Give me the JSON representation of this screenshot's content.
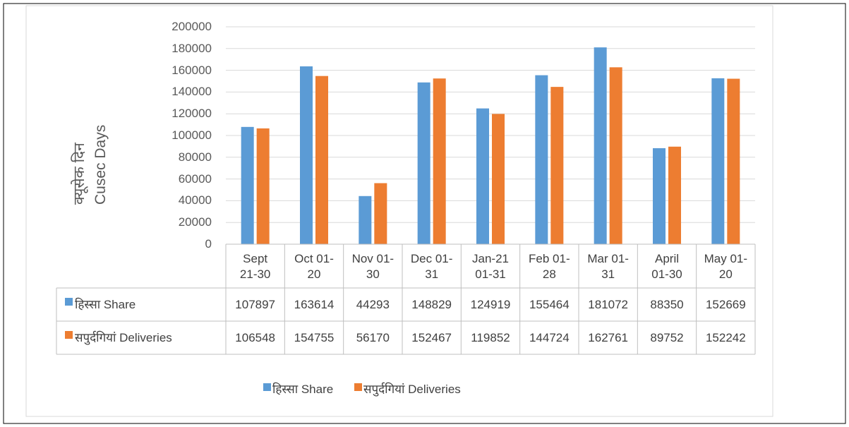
{
  "chart_data": {
    "type": "bar",
    "y_label": [
      "क्यूसेक दिन",
      "Cusec Days"
    ],
    "categories": [
      "Sept 21-30",
      "Oct 01-20",
      "Nov 01-30",
      "Dec 01-31",
      "Jan-21 01-31",
      "Feb 01-28",
      "Mar 01-31",
      "April 01-30",
      "May 01-20"
    ],
    "series": [
      {
        "name": "हिस्सा Share",
        "color": "#5b9bd5",
        "values": [
          107897,
          163614,
          44293,
          148829,
          124919,
          155464,
          181072,
          88350,
          152669
        ]
      },
      {
        "name": "सपुर्दगियां Deliveries",
        "color": "#ed7d31",
        "values": [
          106548,
          154755,
          56170,
          152467,
          119852,
          144724,
          162761,
          89752,
          152242
        ]
      }
    ],
    "ylim": [
      0,
      200000
    ],
    "yticks": [
      0,
      20000,
      40000,
      60000,
      80000,
      100000,
      120000,
      140000,
      160000,
      180000,
      200000
    ],
    "grid": true,
    "legend": "bottom",
    "data_table": true
  }
}
